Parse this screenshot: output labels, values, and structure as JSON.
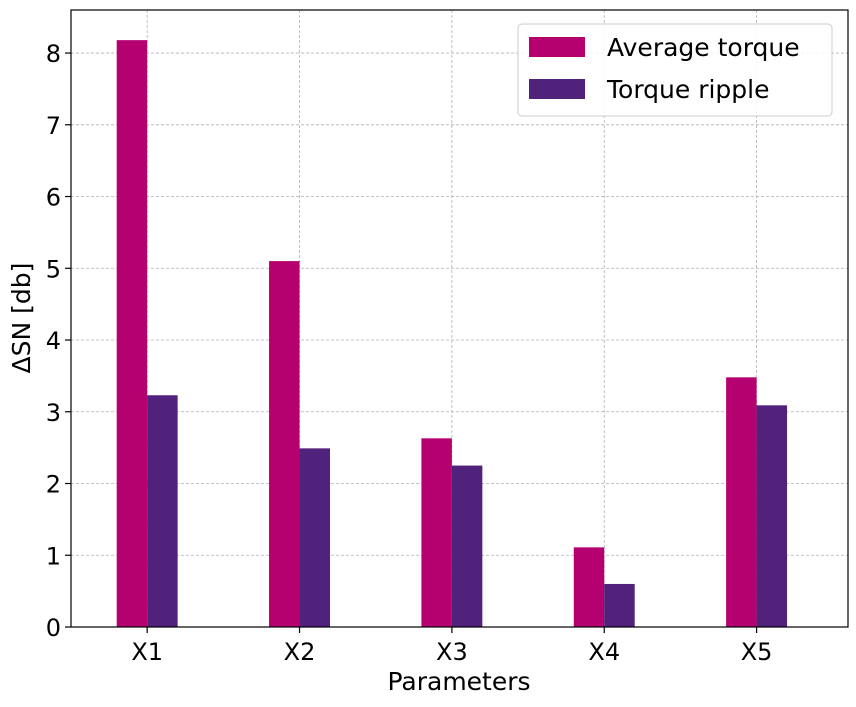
{
  "chart_data": {
    "type": "bar",
    "categories": [
      "X1",
      "X2",
      "X3",
      "X4",
      "X5"
    ],
    "series": [
      {
        "name": "Average torque",
        "values": [
          8.18,
          5.1,
          2.63,
          1.11,
          3.48
        ],
        "color": "#b5006f"
      },
      {
        "name": "Torque ripple",
        "values": [
          3.23,
          2.49,
          2.25,
          0.6,
          3.09
        ],
        "color": "#51227c"
      }
    ],
    "title": "",
    "xlabel": "Parameters",
    "ylabel": "ΔSN [db]",
    "ylim": [
      0,
      8.6
    ],
    "yticks": [
      0,
      1,
      2,
      3,
      4,
      5,
      6,
      7,
      8
    ],
    "grid": true,
    "legend_position": "top-right"
  }
}
